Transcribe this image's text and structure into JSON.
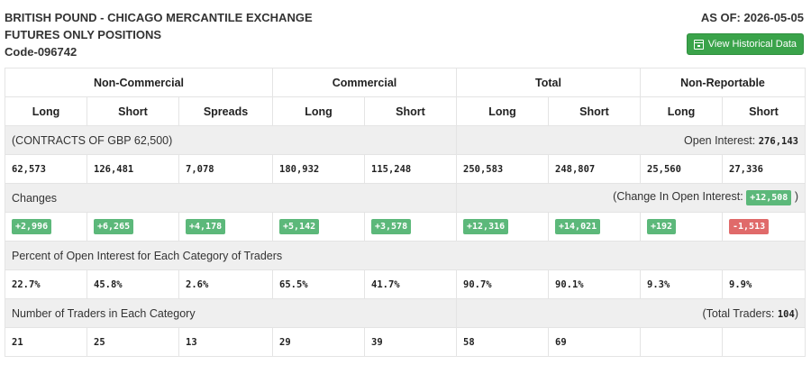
{
  "header": {
    "title_line1": "BRITISH POUND - CHICAGO MERCANTILE EXCHANGE",
    "title_line2": "FUTURES ONLY POSITIONS",
    "code": "Code-096742",
    "as_of": "AS OF: 2026-05-05",
    "history_button": "View Historical Data",
    "history_icon": "calendar-icon"
  },
  "groups": [
    "Non-Commercial",
    "Commercial",
    "Total",
    "Non-Reportable"
  ],
  "columns": [
    "Long",
    "Short",
    "Spreads",
    "Long",
    "Short",
    "Long",
    "Short",
    "Long",
    "Short"
  ],
  "contracts": {
    "label": "(CONTRACTS OF GBP 62,500)",
    "open_interest_label": "Open Interest:",
    "open_interest_value": "276,143",
    "values": [
      "62,573",
      "126,481",
      "7,078",
      "180,932",
      "115,248",
      "250,583",
      "248,807",
      "25,560",
      "27,336"
    ]
  },
  "changes": {
    "label": "Changes",
    "oi_prefix": "(Change In Open Interest:",
    "oi_value": "+12,508",
    "oi_suffix": ")",
    "values": [
      "+2,996",
      "+6,265",
      "+4,178",
      "+5,142",
      "+3,578",
      "+12,316",
      "+14,021",
      "+192",
      "-1,513"
    ],
    "colors": {
      "positive": "#5cb87a",
      "negative": "#e06a6a"
    }
  },
  "percent": {
    "label": "Percent of Open Interest for Each Category of Traders",
    "values": [
      "22.7%",
      "45.8%",
      "2.6%",
      "65.5%",
      "41.7%",
      "90.7%",
      "90.1%",
      "9.3%",
      "9.9%"
    ]
  },
  "traders": {
    "label": "Number of Traders in Each Category",
    "total_prefix": "(Total Traders:",
    "total_value": "104",
    "total_suffix": ")",
    "values": [
      "21",
      "25",
      "13",
      "29",
      "39",
      "58",
      "69",
      "",
      ""
    ]
  },
  "colors": {
    "button": "#3aa34a",
    "section_bg": "#efefef"
  }
}
